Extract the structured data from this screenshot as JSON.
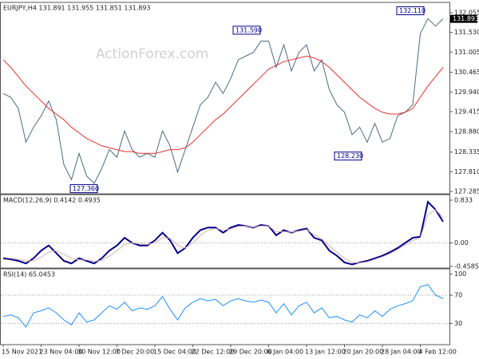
{
  "chart_data": [
    {
      "type": "line",
      "title": "EURJPY,H4 131.891 131.955 131.851 131.893",
      "watermark": "ActionForex.com",
      "ylim": [
        127.22,
        132.29
      ],
      "yticks": [
        132.055,
        {
          "value": 131.53,
          "label": "131.530"
        },
        131.005,
        130.465,
        {
          "value": 129.94,
          "label": "129.940"
        },
        129.415,
        {
          "value": 128.88,
          "label": "128.880"
        },
        128.335,
        {
          "value": 127.81,
          "label": "127.810"
        },
        127.285
      ],
      "last_value": 131.893,
      "annotations": [
        {
          "value": 132.11,
          "label": "132.110"
        },
        {
          "value": 131.59,
          "label": "131.590"
        },
        {
          "value": 128.23,
          "label": "128.230"
        },
        {
          "value": 127.36,
          "label": "127.360"
        }
      ],
      "series": [
        {
          "color": "#4a6b82",
          "values": [
            129.9,
            129.8,
            129.5,
            128.6,
            129.0,
            129.3,
            129.7,
            129.2,
            128.0,
            127.6,
            128.3,
            127.7,
            127.5,
            127.9,
            128.4,
            128.2,
            128.9,
            128.4,
            128.2,
            128.3,
            128.2,
            128.9,
            128.5,
            127.8,
            128.4,
            129.0,
            129.6,
            129.8,
            130.2,
            129.9,
            130.3,
            130.8,
            130.9,
            131.0,
            131.3,
            131.3,
            130.6,
            131.2,
            130.5,
            131.0,
            131.2,
            130.5,
            130.8,
            130.0,
            129.6,
            129.4,
            128.8,
            129.0,
            128.6,
            129.1,
            128.6,
            128.7,
            129.3,
            129.4,
            129.6,
            131.5,
            131.9,
            131.7,
            131.893
          ]
        },
        {
          "color": "#e8302a",
          "values": [
            130.8,
            130.6,
            130.35,
            130.1,
            129.9,
            129.7,
            129.5,
            129.35,
            129.2,
            129.0,
            128.85,
            128.7,
            128.6,
            128.5,
            128.45,
            128.4,
            128.35,
            128.35,
            128.3,
            128.3,
            128.3,
            128.35,
            128.4,
            128.4,
            128.45,
            128.6,
            128.8,
            129.0,
            129.2,
            129.35,
            129.55,
            129.75,
            129.95,
            130.15,
            130.35,
            130.55,
            130.65,
            130.75,
            130.8,
            130.85,
            130.9,
            130.85,
            130.75,
            130.6,
            130.4,
            130.2,
            130.0,
            129.8,
            129.65,
            129.5,
            129.4,
            129.35,
            129.35,
            129.4,
            129.5,
            129.8,
            130.1,
            130.35,
            130.6
          ]
        }
      ]
    },
    {
      "type": "line",
      "title": "MACD(12,26,9) 0.4142 0.4935",
      "ylim": [
        -0.49,
        0.91
      ],
      "yticks": [
        0.833,
        {
          "value": 0,
          "label": "0.00"
        },
        -0.4585
      ],
      "levels": [
        0
      ],
      "series": [
        {
          "color": "#00008b",
          "values": [
            -0.3,
            -0.32,
            -0.35,
            -0.4,
            -0.3,
            -0.15,
            -0.05,
            -0.2,
            -0.35,
            -0.4,
            -0.3,
            -0.35,
            -0.4,
            -0.3,
            -0.15,
            -0.05,
            0.1,
            0,
            -0.05,
            -0.05,
            0.05,
            0.2,
            0.05,
            -0.2,
            -0.1,
            0.1,
            0.25,
            0.3,
            0.3,
            0.2,
            0.3,
            0.35,
            0.33,
            0.3,
            0.35,
            0.33,
            0.15,
            0.25,
            0.2,
            0.25,
            0.28,
            0.1,
            0.05,
            -0.15,
            -0.25,
            -0.38,
            -0.42,
            -0.38,
            -0.35,
            -0.3,
            -0.25,
            -0.18,
            -0.1,
            0,
            0.1,
            0.12,
            0.8,
            0.65,
            0.4142
          ]
        },
        {
          "color": "#d8b0b0",
          "values": [
            -0.28,
            -0.3,
            -0.32,
            -0.35,
            -0.35,
            -0.28,
            -0.18,
            -0.15,
            -0.22,
            -0.3,
            -0.33,
            -0.33,
            -0.36,
            -0.34,
            -0.26,
            -0.15,
            -0.03,
            0,
            -0.02,
            -0.03,
            0,
            0.1,
            0.1,
            -0.05,
            -0.1,
            0,
            0.15,
            0.25,
            0.28,
            0.25,
            0.27,
            0.32,
            0.33,
            0.31,
            0.33,
            0.33,
            0.22,
            0.22,
            0.21,
            0.23,
            0.26,
            0.16,
            0.08,
            -0.06,
            -0.18,
            -0.3,
            -0.38,
            -0.39,
            -0.37,
            -0.32,
            -0.27,
            -0.21,
            -0.13,
            -0.04,
            0.05,
            0.1,
            0.55,
            0.65,
            0.4935
          ]
        }
      ]
    },
    {
      "type": "line",
      "title": "RSI(14) 65.0453",
      "ylim": [
        0,
        105
      ],
      "yticks": [
        100,
        70,
        30
      ],
      "levels": [
        70,
        30
      ],
      "categories": [
        "15 Nov 2021",
        null,
        null,
        null,
        null,
        "23 Nov 04:00",
        null,
        null,
        null,
        null,
        "30 Nov 12:00",
        null,
        null,
        null,
        null,
        "7 Dec 20:00",
        null,
        null,
        null,
        null,
        "15 Dec 04:00",
        null,
        null,
        null,
        null,
        "22 Dec 12:00",
        null,
        null,
        null,
        null,
        "29 Dec 20:00",
        null,
        null,
        null,
        null,
        "6 Jan 04:00",
        null,
        null,
        null,
        null,
        "13 Jan 12:00",
        null,
        null,
        null,
        null,
        "20 Jan 20:00",
        null,
        null,
        null,
        null,
        "28 Jan 04:00",
        null,
        null,
        null,
        null,
        "4 Feb 12:00",
        null,
        null,
        null
      ],
      "series": [
        {
          "color": "#1e90ff",
          "values": [
            40,
            42,
            38,
            25,
            45,
            48,
            52,
            45,
            35,
            28,
            45,
            32,
            35,
            45,
            55,
            50,
            60,
            48,
            52,
            50,
            55,
            68,
            50,
            35,
            52,
            60,
            65,
            62,
            64,
            55,
            62,
            65,
            62,
            60,
            63,
            60,
            45,
            58,
            42,
            55,
            60,
            45,
            52,
            38,
            40,
            35,
            32,
            42,
            38,
            48,
            40,
            50,
            55,
            58,
            62,
            82,
            85,
            70,
            65.0453
          ]
        }
      ]
    }
  ]
}
